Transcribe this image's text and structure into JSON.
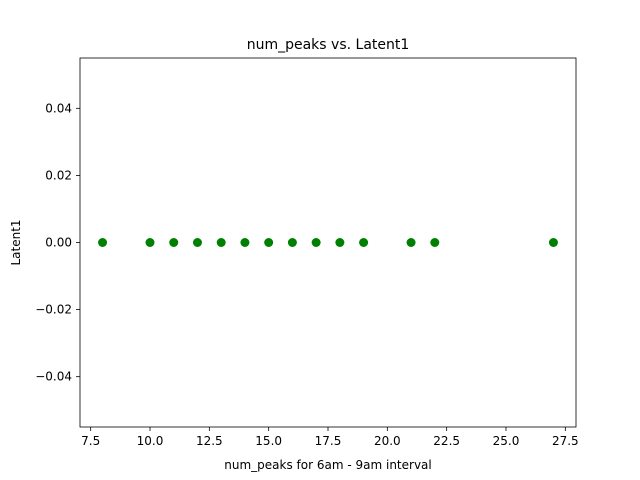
{
  "chart_data": {
    "type": "scatter",
    "title": "num_peaks vs. Latent1",
    "xlabel": "num_peaks for 6am - 9am interval",
    "ylabel": "Latent1",
    "xlim": [
      7.05,
      27.95
    ],
    "ylim": [
      -0.055,
      0.055
    ],
    "xticks": [
      7.5,
      10.0,
      12.5,
      15.0,
      17.5,
      20.0,
      22.5,
      25.0,
      27.5
    ],
    "xtick_labels": [
      "7.5",
      "10.0",
      "12.5",
      "15.0",
      "17.5",
      "20.0",
      "22.5",
      "25.0",
      "27.5"
    ],
    "yticks": [
      -0.04,
      -0.02,
      0.0,
      0.02,
      0.04
    ],
    "ytick_labels": [
      "−0.04",
      "−0.02",
      "0.00",
      "0.02",
      "0.04"
    ],
    "grid": false,
    "legend": "none",
    "marker_color": "#008000",
    "series": [
      {
        "x": [
          8,
          10,
          11,
          12,
          13,
          14,
          15,
          16,
          17,
          18,
          19,
          21,
          22,
          27
        ],
        "y": [
          0,
          0,
          0,
          0,
          0,
          0,
          0,
          0,
          0,
          0,
          0,
          0,
          0,
          0
        ]
      }
    ]
  }
}
